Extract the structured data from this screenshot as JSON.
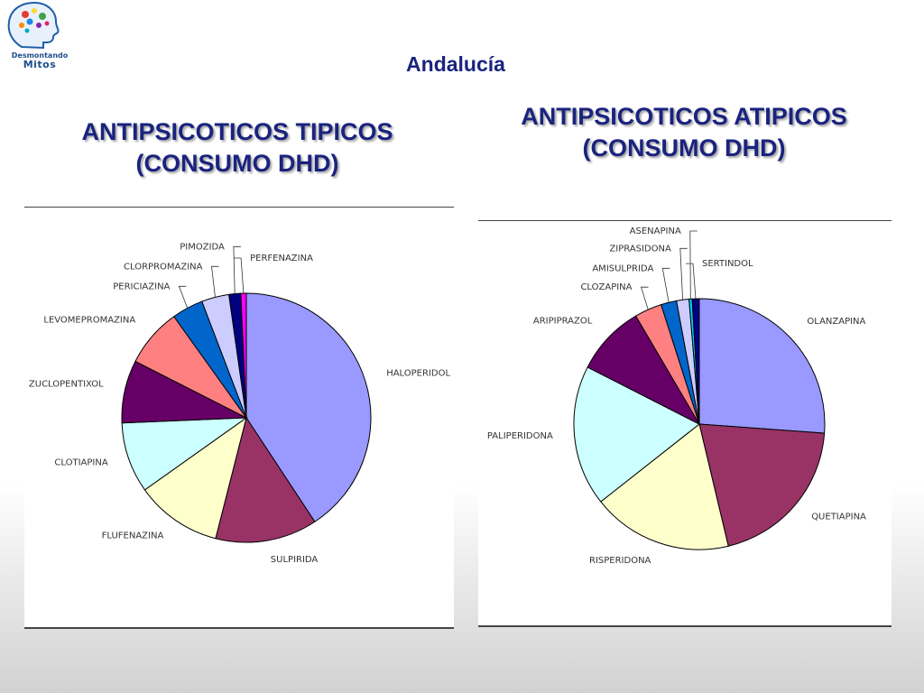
{
  "header": {
    "logo_line1": "Desmontando",
    "logo_line2": "Mitos",
    "region": "Andalucía"
  },
  "charts": [
    {
      "title_line1": "ANTIPSICOTICOS TIPICOS",
      "title_line2": "(CONSUMO DHD)"
    },
    {
      "title_line1": "ANTIPSICOTICOS ATIPICOS",
      "title_line2": "(CONSUMO DHD)"
    }
  ],
  "chart_data": [
    {
      "type": "pie",
      "title": "ANTIPSICOTICOS TIPICOS (CONSUMO DHD)",
      "start_angle_deg": 0,
      "direction": "clockwise",
      "slices": [
        {
          "label": "HALOPERIDOL",
          "value": 40,
          "color": "#9999ff",
          "label_pos": "right"
        },
        {
          "label": "SULPIRIDA",
          "value": 13,
          "color": "#993366",
          "label_pos": "right"
        },
        {
          "label": "FLUFENAZINA",
          "value": 11,
          "color": "#ffffcc",
          "label_pos": "left"
        },
        {
          "label": "CLOTIAPINA",
          "value": 9,
          "color": "#ccffff",
          "label_pos": "left"
        },
        {
          "label": "ZUCLOPENTIXOL",
          "value": 8,
          "color": "#660066",
          "label_pos": "left"
        },
        {
          "label": "LEVOMEPROMAZINA",
          "value": 7.5,
          "color": "#ff8080",
          "label_pos": "left"
        },
        {
          "label": "PERICIAZINA",
          "value": 4,
          "color": "#0066cc",
          "label_pos": "left"
        },
        {
          "label": "CLORPROMAZINA",
          "value": 3.5,
          "color": "#ccccff",
          "label_pos": "left"
        },
        {
          "label": "PIMOZIDA",
          "value": 1.5,
          "color": "#000080",
          "label_pos": "left"
        },
        {
          "label": "PERFENAZINA",
          "value": 0.7,
          "color": "#ff00ff",
          "label_pos": "right"
        }
      ]
    },
    {
      "type": "pie",
      "title": "ANTIPSICOTICOS ATIPICOS (CONSUMO DHD)",
      "start_angle_deg": 0,
      "direction": "clockwise",
      "slices": [
        {
          "label": "OLANZAPINA",
          "value": 26,
          "color": "#9999ff",
          "label_pos": "right"
        },
        {
          "label": "QUETIAPINA",
          "value": 20,
          "color": "#993366",
          "label_pos": "right"
        },
        {
          "label": "RISPERIDONA",
          "value": 18,
          "color": "#ffffcc",
          "label_pos": "left"
        },
        {
          "label": "PALIPERIDONA",
          "value": 18,
          "color": "#ccffff",
          "label_pos": "left"
        },
        {
          "label": "ARIPIPRAZOL",
          "value": 9,
          "color": "#660066",
          "label_pos": "left"
        },
        {
          "label": "CLOZAPINA",
          "value": 3.5,
          "color": "#ff8080",
          "label_pos": "left"
        },
        {
          "label": "AMISULPRIDA",
          "value": 2,
          "color": "#0066cc",
          "label_pos": "left"
        },
        {
          "label": "ZIPRASIDONA",
          "value": 1.6,
          "color": "#ccccff",
          "label_pos": "left"
        },
        {
          "label": "ASENAPINA",
          "value": 0.4,
          "color": "#00ccff",
          "label_pos": "left"
        },
        {
          "label": "SERTINDOL",
          "value": 0.9,
          "color": "#000080",
          "label_pos": "right"
        }
      ]
    }
  ]
}
